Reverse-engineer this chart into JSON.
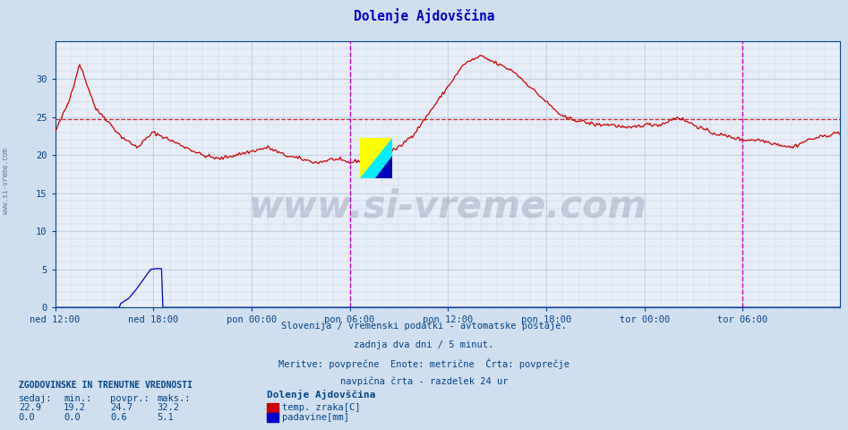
{
  "title": "Dolenje Ajdovščina",
  "title_color": "#0000cc",
  "bg_color": "#d0dff0",
  "plot_bg_color": "#e8eef8",
  "grid_color_minor": "#c8d4e4",
  "grid_color_major": "#b8cce0",
  "temp_color": "#cc0000",
  "rain_color": "#0000cc",
  "avg_line_color": "#cc0000",
  "avg_value": 24.7,
  "ylim": [
    0,
    35
  ],
  "yticks": [
    0,
    5,
    10,
    15,
    20,
    25,
    30
  ],
  "tick_color": "#004488",
  "subtitle_color": "#004488",
  "watermark_text": "www.si-vreme.com",
  "watermark_color": "#1a3060",
  "watermark_alpha": 0.18,
  "legend_title": "Dolenje Ajdovščina",
  "stats_header": "ZGODOVINSKE IN TRENUTNE VREDNOSTI",
  "stats_header_color": "#004488",
  "stats_labels": [
    "sedaj:",
    "min.:",
    "povpr.:",
    "maks.:"
  ],
  "stats_temp": [
    22.9,
    19.2,
    24.7,
    32.2
  ],
  "stats_rain": [
    0.0,
    0.0,
    0.6,
    5.1
  ],
  "legend_temp_label": "temp. zraka[C]",
  "legend_rain_label": "padavine[mm]",
  "xtick_labels": [
    "ned 12:00",
    "ned 18:00",
    "pon 00:00",
    "pon 06:00",
    "pon 12:00",
    "pon 18:00",
    "tor 00:00",
    "tor 06:00"
  ],
  "xtick_positions": [
    0,
    72,
    144,
    216,
    288,
    360,
    432,
    504
  ],
  "vline_positions": [
    216,
    504
  ],
  "vline_color": "#cc00cc",
  "n_points": 576,
  "total_hours": 48,
  "subtitle_lines": [
    "Slovenija / vremenski podatki - avtomatske postaje.",
    "zadnja dva dni / 5 minut.",
    "Meritve: povprečne  Enote: metrične  Črta: povprečje",
    "navpična črta - razdelek 24 ur"
  ]
}
